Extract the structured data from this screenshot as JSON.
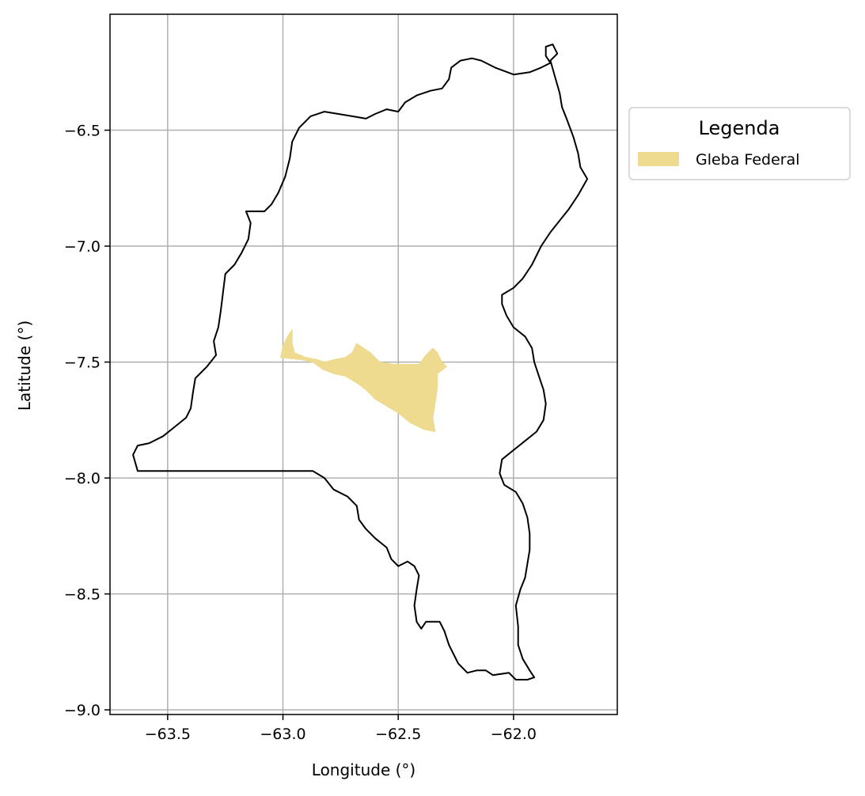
{
  "chart_data": {
    "type": "map",
    "xlabel": "Longitude (°)",
    "ylabel": "Latitude (°)",
    "xlim": [
      -63.75,
      -61.55
    ],
    "ylim": [
      -9.02,
      -6.0
    ],
    "grid": true,
    "xticks": [
      -63.5,
      -63.0,
      -62.5,
      -62.0
    ],
    "yticks": [
      -6.5,
      -7.0,
      -7.5,
      -8.0,
      -8.5,
      -9.0
    ],
    "xtick_labels": [
      "−63.5",
      "−63.0",
      "−62.5",
      "−62.0"
    ],
    "ytick_labels": [
      "−6.5",
      "−7.0",
      "−7.5",
      "−8.0",
      "−8.5",
      "−9.0"
    ],
    "legend": {
      "title": "Legenda",
      "placement": "upper right, outside plot",
      "entries": [
        {
          "label": "Gleba Federal",
          "color": "#eedb8f"
        }
      ]
    },
    "layers": [
      {
        "name": "municipality-boundary",
        "kind": "outline",
        "stroke": "#000000",
        "coords": [
          [
            -63.63,
            -7.97
          ],
          [
            -63.48,
            -7.97
          ],
          [
            -63.3,
            -7.97
          ],
          [
            -63.1,
            -7.97
          ],
          [
            -62.87,
            -7.97
          ],
          [
            -62.82,
            -8.0
          ],
          [
            -62.78,
            -8.05
          ],
          [
            -62.72,
            -8.08
          ],
          [
            -62.68,
            -8.12
          ],
          [
            -62.67,
            -8.18
          ],
          [
            -62.64,
            -8.22
          ],
          [
            -62.6,
            -8.26
          ],
          [
            -62.55,
            -8.3
          ],
          [
            -62.53,
            -8.35
          ],
          [
            -62.5,
            -8.38
          ],
          [
            -62.46,
            -8.36
          ],
          [
            -62.43,
            -8.38
          ],
          [
            -62.41,
            -8.42
          ],
          [
            -62.42,
            -8.48
          ],
          [
            -62.43,
            -8.55
          ],
          [
            -62.42,
            -8.62
          ],
          [
            -62.4,
            -8.65
          ],
          [
            -62.38,
            -8.62
          ],
          [
            -62.32,
            -8.62
          ],
          [
            -62.3,
            -8.66
          ],
          [
            -62.28,
            -8.72
          ],
          [
            -62.24,
            -8.8
          ],
          [
            -62.2,
            -8.84
          ],
          [
            -62.16,
            -8.83
          ],
          [
            -62.12,
            -8.83
          ],
          [
            -62.09,
            -8.85
          ],
          [
            -62.02,
            -8.84
          ],
          [
            -61.99,
            -8.87
          ],
          [
            -61.94,
            -8.87
          ],
          [
            -61.91,
            -8.86
          ],
          [
            -61.93,
            -8.83
          ],
          [
            -61.96,
            -8.78
          ],
          [
            -61.98,
            -8.72
          ],
          [
            -61.98,
            -8.64
          ],
          [
            -61.99,
            -8.55
          ],
          [
            -61.97,
            -8.48
          ],
          [
            -61.95,
            -8.43
          ],
          [
            -61.94,
            -8.37
          ],
          [
            -61.93,
            -8.31
          ],
          [
            -61.93,
            -8.24
          ],
          [
            -61.94,
            -8.17
          ],
          [
            -61.96,
            -8.11
          ],
          [
            -61.99,
            -8.06
          ],
          [
            -62.04,
            -8.03
          ],
          [
            -62.06,
            -7.98
          ],
          [
            -62.05,
            -7.92
          ],
          [
            -62.0,
            -7.88
          ],
          [
            -61.95,
            -7.84
          ],
          [
            -61.9,
            -7.8
          ],
          [
            -61.87,
            -7.75
          ],
          [
            -61.86,
            -7.68
          ],
          [
            -61.87,
            -7.62
          ],
          [
            -61.89,
            -7.56
          ],
          [
            -61.91,
            -7.5
          ],
          [
            -61.92,
            -7.44
          ],
          [
            -61.95,
            -7.39
          ],
          [
            -62.0,
            -7.35
          ],
          [
            -62.03,
            -7.3
          ],
          [
            -62.05,
            -7.25
          ],
          [
            -62.05,
            -7.21
          ],
          [
            -62.0,
            -7.18
          ],
          [
            -61.96,
            -7.14
          ],
          [
            -61.92,
            -7.08
          ],
          [
            -61.88,
            -7.0
          ],
          [
            -61.84,
            -6.94
          ],
          [
            -61.8,
            -6.89
          ],
          [
            -61.76,
            -6.84
          ],
          [
            -61.72,
            -6.78
          ],
          [
            -61.68,
            -6.71
          ],
          [
            -61.71,
            -6.66
          ],
          [
            -61.72,
            -6.6
          ],
          [
            -61.74,
            -6.53
          ],
          [
            -61.77,
            -6.45
          ],
          [
            -61.79,
            -6.4
          ],
          [
            -61.8,
            -6.34
          ],
          [
            -61.82,
            -6.27
          ],
          [
            -61.84,
            -6.2
          ],
          [
            -61.81,
            -6.17
          ],
          [
            -61.83,
            -6.13
          ],
          [
            -61.86,
            -6.14
          ],
          [
            -61.86,
            -6.18
          ],
          [
            -61.84,
            -6.21
          ],
          [
            -61.88,
            -6.23
          ],
          [
            -61.93,
            -6.25
          ],
          [
            -62.0,
            -6.26
          ],
          [
            -62.08,
            -6.23
          ],
          [
            -62.14,
            -6.2
          ],
          [
            -62.18,
            -6.19
          ],
          [
            -62.23,
            -6.2
          ],
          [
            -62.27,
            -6.23
          ],
          [
            -62.28,
            -6.28
          ],
          [
            -62.31,
            -6.32
          ],
          [
            -62.36,
            -6.33
          ],
          [
            -62.42,
            -6.35
          ],
          [
            -62.47,
            -6.38
          ],
          [
            -62.5,
            -6.42
          ],
          [
            -62.55,
            -6.41
          ],
          [
            -62.6,
            -6.43
          ],
          [
            -62.64,
            -6.45
          ],
          [
            -62.7,
            -6.44
          ],
          [
            -62.76,
            -6.43
          ],
          [
            -62.82,
            -6.42
          ],
          [
            -62.88,
            -6.44
          ],
          [
            -62.93,
            -6.49
          ],
          [
            -62.96,
            -6.55
          ],
          [
            -62.97,
            -6.62
          ],
          [
            -62.99,
            -6.7
          ],
          [
            -63.02,
            -6.77
          ],
          [
            -63.05,
            -6.82
          ],
          [
            -63.08,
            -6.85
          ],
          [
            -63.16,
            -6.85
          ],
          [
            -63.14,
            -6.9
          ],
          [
            -63.15,
            -6.97
          ],
          [
            -63.18,
            -7.03
          ],
          [
            -63.21,
            -7.08
          ],
          [
            -63.25,
            -7.12
          ],
          [
            -63.26,
            -7.2
          ],
          [
            -63.27,
            -7.28
          ],
          [
            -63.28,
            -7.35
          ],
          [
            -63.3,
            -7.41
          ],
          [
            -63.29,
            -7.47
          ],
          [
            -63.33,
            -7.52
          ],
          [
            -63.38,
            -7.57
          ],
          [
            -63.39,
            -7.63
          ],
          [
            -63.4,
            -7.7
          ],
          [
            -63.42,
            -7.74
          ],
          [
            -63.47,
            -7.78
          ],
          [
            -63.52,
            -7.82
          ],
          [
            -63.58,
            -7.85
          ],
          [
            -63.63,
            -7.86
          ],
          [
            -63.65,
            -7.9
          ],
          [
            -63.63,
            -7.97
          ]
        ]
      },
      {
        "name": "Gleba Federal",
        "kind": "polygon",
        "fill": "#eedb8f",
        "coords": [
          [
            -62.96,
            -7.36
          ],
          [
            -62.96,
            -7.42
          ],
          [
            -62.95,
            -7.46
          ],
          [
            -62.9,
            -7.48
          ],
          [
            -62.85,
            -7.49
          ],
          [
            -62.82,
            -7.5
          ],
          [
            -62.78,
            -7.49
          ],
          [
            -62.73,
            -7.48
          ],
          [
            -62.7,
            -7.46
          ],
          [
            -62.68,
            -7.42
          ],
          [
            -62.65,
            -7.44
          ],
          [
            -62.62,
            -7.46
          ],
          [
            -62.58,
            -7.5
          ],
          [
            -62.52,
            -7.51
          ],
          [
            -62.46,
            -7.51
          ],
          [
            -62.41,
            -7.51
          ],
          [
            -62.38,
            -7.47
          ],
          [
            -62.35,
            -7.44
          ],
          [
            -62.33,
            -7.46
          ],
          [
            -62.31,
            -7.5
          ],
          [
            -62.29,
            -7.52
          ],
          [
            -62.33,
            -7.55
          ],
          [
            -62.33,
            -7.61
          ],
          [
            -62.34,
            -7.68
          ],
          [
            -62.35,
            -7.74
          ],
          [
            -62.34,
            -7.8
          ],
          [
            -62.39,
            -7.79
          ],
          [
            -62.45,
            -7.76
          ],
          [
            -62.5,
            -7.72
          ],
          [
            -62.55,
            -7.69
          ],
          [
            -62.6,
            -7.66
          ],
          [
            -62.64,
            -7.62
          ],
          [
            -62.68,
            -7.59
          ],
          [
            -62.73,
            -7.56
          ],
          [
            -62.78,
            -7.55
          ],
          [
            -62.83,
            -7.53
          ],
          [
            -62.87,
            -7.5
          ],
          [
            -62.92,
            -7.49
          ],
          [
            -63.01,
            -7.48
          ],
          [
            -63.0,
            -7.43
          ],
          [
            -62.98,
            -7.39
          ],
          [
            -62.96,
            -7.36
          ]
        ]
      }
    ]
  }
}
